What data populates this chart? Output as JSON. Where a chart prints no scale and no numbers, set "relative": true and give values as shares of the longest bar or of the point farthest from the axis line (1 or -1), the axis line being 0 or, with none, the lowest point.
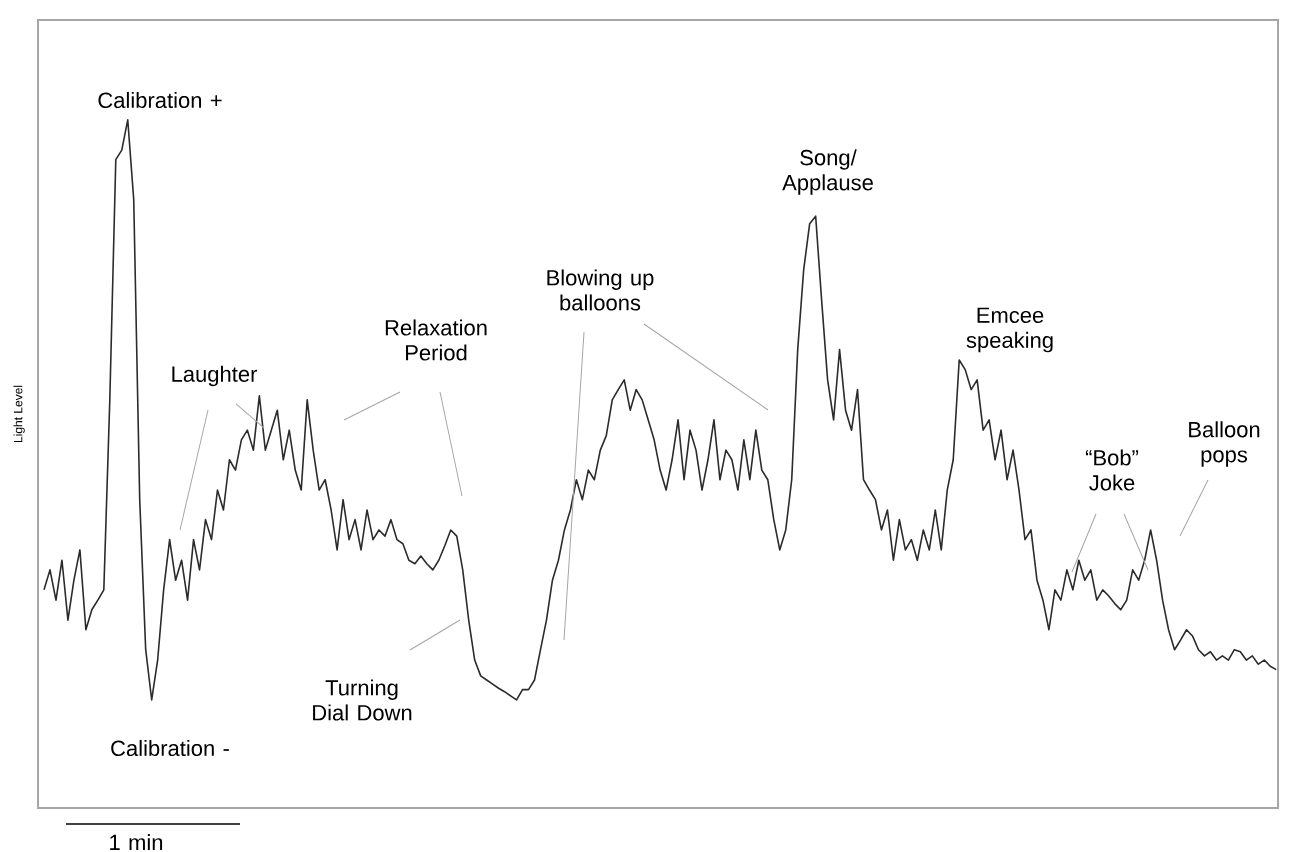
{
  "chart_data": {
    "type": "line",
    "relative": true,
    "ylabel": "Light Level",
    "color": "#2b2b2b",
    "line_style": "solid",
    "annotations": [
      "Calibration +",
      "Laughter",
      "Relaxation Period",
      "Blowing up balloons",
      "Song/ Applause",
      "Emcee speaking",
      "“Bob” Joke",
      "Balloon pops",
      "Turning Dial Down",
      "Calibration -",
      "1 min"
    ],
    "categories": [
      null,
      null,
      null,
      null,
      null,
      null,
      null,
      null,
      null,
      null,
      null,
      null,
      null,
      null,
      null,
      null,
      null,
      null,
      null,
      null,
      null,
      null,
      null,
      null,
      null,
      null,
      null,
      null,
      null,
      null,
      null,
      null,
      null,
      null,
      null,
      null,
      null,
      null,
      null,
      null,
      null,
      null,
      null,
      null,
      null,
      null,
      null,
      null,
      null,
      null,
      null,
      null,
      null,
      null,
      null,
      null,
      null,
      null,
      null,
      null,
      null,
      null,
      null,
      null,
      null,
      null,
      null,
      null,
      null,
      null,
      null,
      null,
      null,
      null,
      null,
      null,
      null,
      null,
      null,
      null,
      null,
      null,
      null,
      null,
      null,
      null,
      null,
      null,
      null,
      null,
      null,
      null,
      null,
      null,
      null,
      null,
      null,
      null,
      null,
      null,
      null,
      null,
      null,
      null,
      null,
      null,
      null,
      null,
      null,
      null,
      null,
      null,
      null,
      null,
      null,
      null,
      null,
      null,
      null,
      null,
      null,
      null,
      null,
      null,
      null,
      null,
      null,
      null,
      null,
      null,
      null,
      null,
      null,
      null,
      null,
      null,
      null,
      null,
      null,
      null,
      null,
      null,
      null,
      null,
      null,
      null,
      null,
      null,
      null,
      null,
      null,
      null,
      null,
      null,
      null,
      null,
      null,
      null,
      null,
      null,
      null,
      null,
      null,
      null,
      null,
      null,
      null,
      null,
      null,
      null,
      null,
      null,
      null,
      null,
      null,
      null,
      null,
      null,
      null,
      null,
      null,
      null,
      null,
      null,
      null,
      null,
      null,
      null,
      null,
      null,
      null,
      null,
      null,
      null,
      null,
      null,
      null,
      null,
      null,
      null,
      null,
      null,
      null,
      null,
      null,
      null,
      null
    ],
    "values": [
      0.317,
      0.346,
      0.302,
      0.36,
      0.273,
      0.331,
      0.375,
      0.259,
      0.288,
      0.302,
      0.317,
      0.593,
      0.942,
      0.956,
      1.0,
      0.884,
      0.448,
      0.23,
      0.157,
      0.215,
      0.317,
      0.39,
      0.331,
      0.36,
      0.302,
      0.39,
      0.346,
      0.419,
      0.39,
      0.462,
      0.433,
      0.506,
      0.491,
      0.535,
      0.549,
      0.52,
      0.599,
      0.52,
      0.549,
      0.578,
      0.506,
      0.549,
      0.491,
      0.462,
      0.593,
      0.52,
      0.462,
      0.477,
      0.433,
      0.375,
      0.448,
      0.39,
      0.419,
      0.375,
      0.433,
      0.39,
      0.404,
      0.395,
      0.419,
      0.39,
      0.384,
      0.36,
      0.355,
      0.366,
      0.355,
      0.346,
      0.36,
      0.381,
      0.404,
      0.395,
      0.346,
      0.273,
      0.215,
      0.192,
      0.186,
      0.18,
      0.174,
      0.169,
      0.163,
      0.157,
      0.172,
      0.172,
      0.186,
      0.23,
      0.273,
      0.331,
      0.36,
      0.404,
      0.433,
      0.477,
      0.448,
      0.491,
      0.477,
      0.52,
      0.541,
      0.593,
      0.608,
      0.622,
      0.578,
      0.608,
      0.593,
      0.564,
      0.535,
      0.491,
      0.462,
      0.506,
      0.564,
      0.477,
      0.549,
      0.52,
      0.462,
      0.506,
      0.564,
      0.477,
      0.52,
      0.506,
      0.462,
      0.535,
      0.477,
      0.549,
      0.491,
      0.477,
      0.419,
      0.375,
      0.404,
      0.477,
      0.666,
      0.782,
      0.849,
      0.86,
      0.738,
      0.622,
      0.564,
      0.666,
      0.578,
      0.549,
      0.608,
      0.477,
      0.462,
      0.448,
      0.404,
      0.433,
      0.36,
      0.419,
      0.375,
      0.39,
      0.36,
      0.404,
      0.375,
      0.433,
      0.375,
      0.462,
      0.506,
      0.651,
      0.637,
      0.608,
      0.622,
      0.549,
      0.564,
      0.506,
      0.549,
      0.477,
      0.52,
      0.462,
      0.39,
      0.404,
      0.331,
      0.302,
      0.259,
      0.317,
      0.302,
      0.346,
      0.317,
      0.36,
      0.331,
      0.346,
      0.302,
      0.317,
      0.308,
      0.297,
      0.288,
      0.302,
      0.346,
      0.331,
      0.36,
      0.404,
      0.36,
      0.302,
      0.259,
      0.23,
      0.244,
      0.259,
      0.25,
      0.23,
      0.221,
      0.227,
      0.215,
      0.221,
      0.215,
      0.23,
      0.227,
      0.215,
      0.221,
      0.209,
      0.215,
      0.206,
      0.201
    ]
  }
}
